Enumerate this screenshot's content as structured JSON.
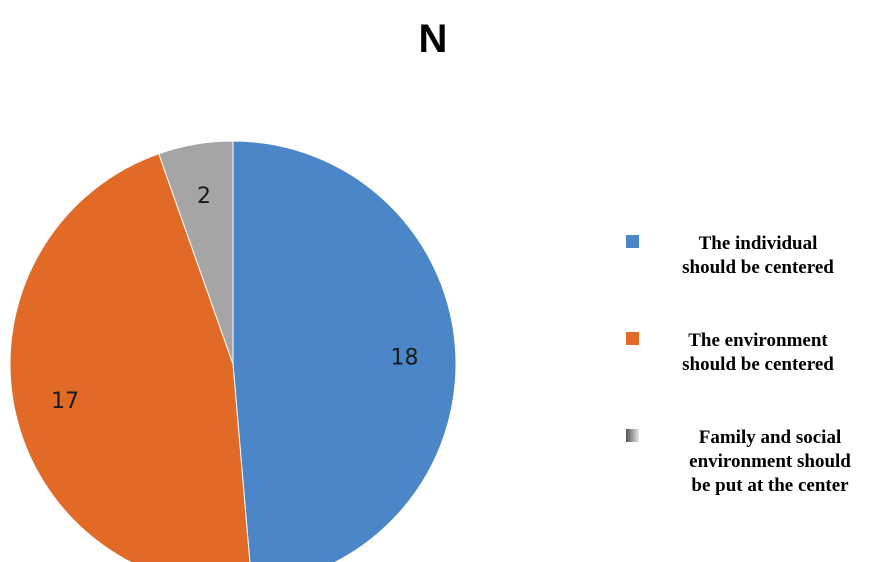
{
  "chart_data": {
    "type": "pie",
    "title": "N",
    "slices": [
      {
        "label_lines": [
          "The individual",
          "should be centered"
        ],
        "value": 18,
        "color": "#4a86c8"
      },
      {
        "label_lines": [
          "The environment",
          "should be centered"
        ],
        "value": 17,
        "color": "#e06a26"
      },
      {
        "label_lines": [
          "Family and social",
          "environment should",
          "be put at the center"
        ],
        "value": 2,
        "color": "#a5a5a5"
      }
    ],
    "legend_position": "right",
    "start_angle": "12 o'clock",
    "direction": "clockwise"
  }
}
